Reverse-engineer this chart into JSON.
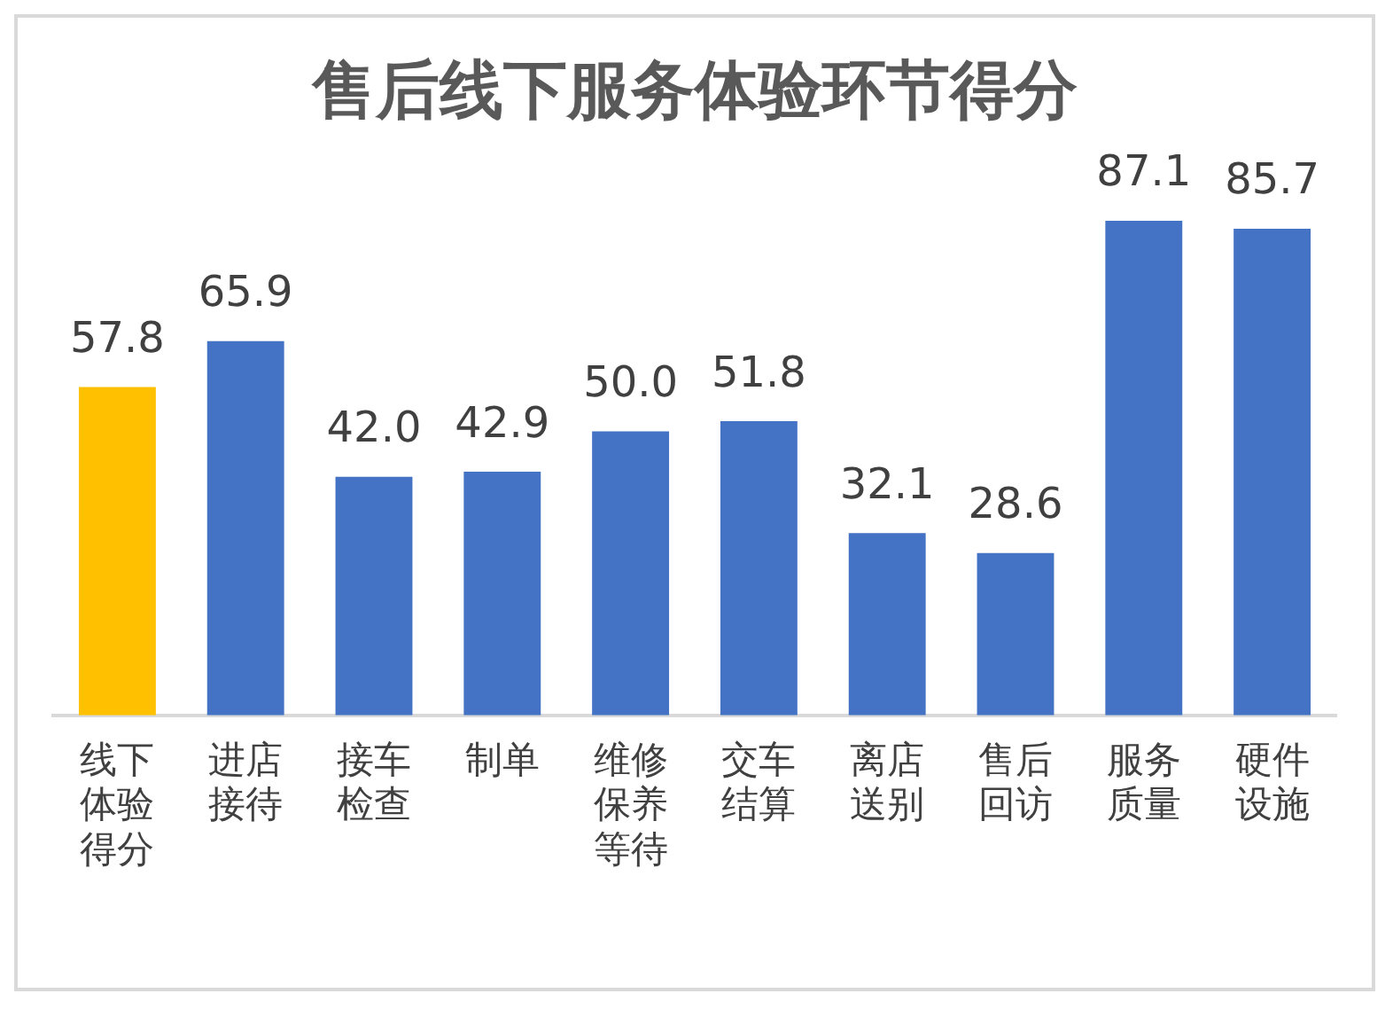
{
  "chart_data": {
    "type": "bar",
    "title": "售后线下服务体验环节得分",
    "categories": [
      "线下体验得分",
      "进店接待",
      "接车检查",
      "制单",
      "维修保养等待",
      "交车结算",
      "离店送别",
      "售后回访",
      "服务质量",
      "硬件设施"
    ],
    "values": [
      57.8,
      65.9,
      42.0,
      42.9,
      50.0,
      51.8,
      32.1,
      28.6,
      87.1,
      85.7
    ],
    "colors": [
      "#ffc000",
      "#4472c4",
      "#4472c4",
      "#4472c4",
      "#4472c4",
      "#4472c4",
      "#4472c4",
      "#4472c4",
      "#4472c4",
      "#4472c4"
    ],
    "value_labels": [
      "57.8",
      "65.9",
      "42.0",
      "42.9",
      "50.0",
      "51.8",
      "32.1",
      "28.6",
      "87.1",
      "85.7"
    ],
    "grid": false,
    "legend": false
  }
}
